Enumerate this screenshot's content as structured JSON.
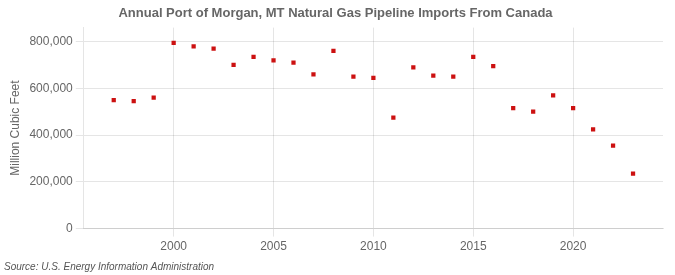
{
  "chart_data": {
    "type": "scatter",
    "title": "Annual Port of Morgan, MT Natural Gas Pipeline Imports From Canada",
    "ylabel": "Million Cubic Feet",
    "annotations": [
      "Source: U.S. Energy Information Administration"
    ],
    "x": [
      1997,
      1998,
      1999,
      2000,
      2001,
      2002,
      2003,
      2004,
      2005,
      2006,
      2007,
      2008,
      2009,
      2010,
      2011,
      2012,
      2013,
      2014,
      2015,
      2016,
      2017,
      2018,
      2019,
      2020,
      2021,
      2022,
      2023
    ],
    "values": [
      550000,
      545000,
      560000,
      795000,
      780000,
      770000,
      700000,
      735000,
      720000,
      710000,
      660000,
      760000,
      650000,
      645000,
      475000,
      690000,
      655000,
      650000,
      735000,
      695000,
      515000,
      500000,
      570000,
      515000,
      425000,
      355000,
      235000
    ],
    "color": "#CC1111",
    "marker": "square",
    "xlim": [
      1995.5,
      2024.5
    ],
    "xticks": [
      2000,
      2005,
      2010,
      2015,
      2020
    ],
    "ylim": [
      0,
      860000
    ],
    "yticks": [
      0,
      {
        "value": 200000,
        "label": "200,000"
      },
      {
        "value": 400000,
        "label": "400,000"
      },
      {
        "value": 600000,
        "label": "600,000"
      },
      {
        "value": 800000,
        "label": "800,000"
      }
    ],
    "grid": true
  }
}
